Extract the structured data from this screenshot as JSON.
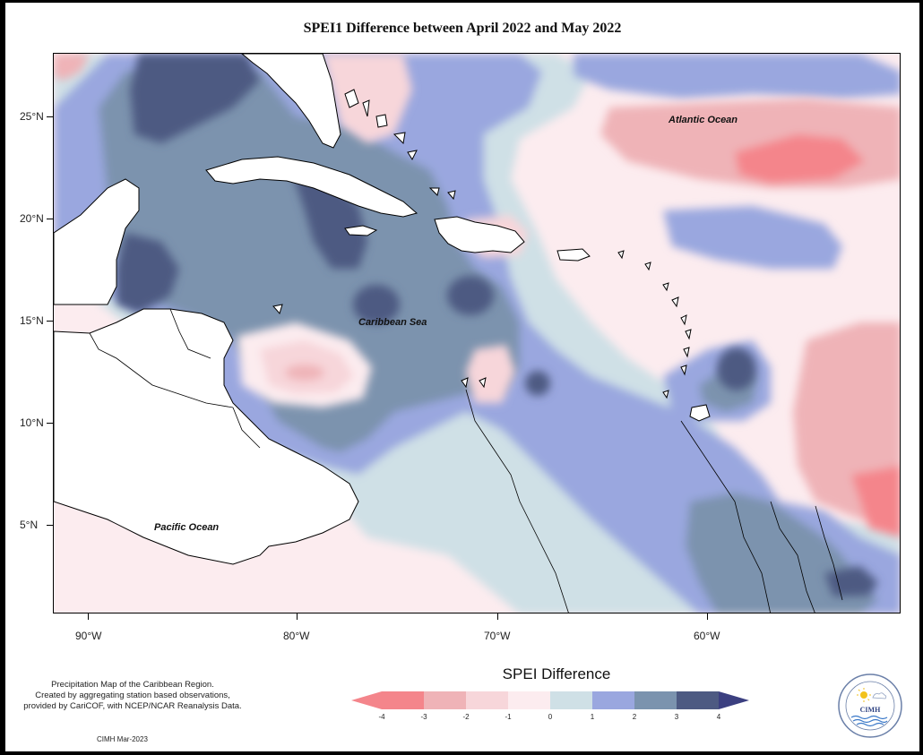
{
  "title": "SPEI1 Difference between April 2022 and May 2022",
  "map": {
    "latitude_labels": [
      "25°N",
      "20°N",
      "15°N",
      "10°N",
      "5°N"
    ],
    "longitude_labels": [
      "90°W",
      "80°W",
      "70°W",
      "60°W"
    ],
    "regions": {
      "atlantic": "Atlantic Ocean",
      "caribbean": "Caribbean Sea",
      "pacific": "Pacific Ocean"
    }
  },
  "legend": {
    "title": "SPEI Difference",
    "ticks": [
      "-4",
      "-3",
      "-2",
      "-1",
      "0",
      "1",
      "2",
      "3",
      "4"
    ],
    "colors": [
      "#f4858b",
      "#efb3b7",
      "#f7d6da",
      "#fcecef",
      "#cfe0e6",
      "#9aa7df",
      "#7b93ae",
      "#4d5a82"
    ],
    "low_arrow_color": "#f4858b",
    "high_arrow_color": "#3b3f80"
  },
  "credit": {
    "line1": "Precipitation Map of the Caribbean Region.",
    "line2": "Created by aggregating station based observations,",
    "line3": "provided by CariCOF, with NCEP/NCAR Reanalysis Data."
  },
  "footer": "CIMH Mar-2023",
  "logo": {
    "text": "CIMH"
  }
}
